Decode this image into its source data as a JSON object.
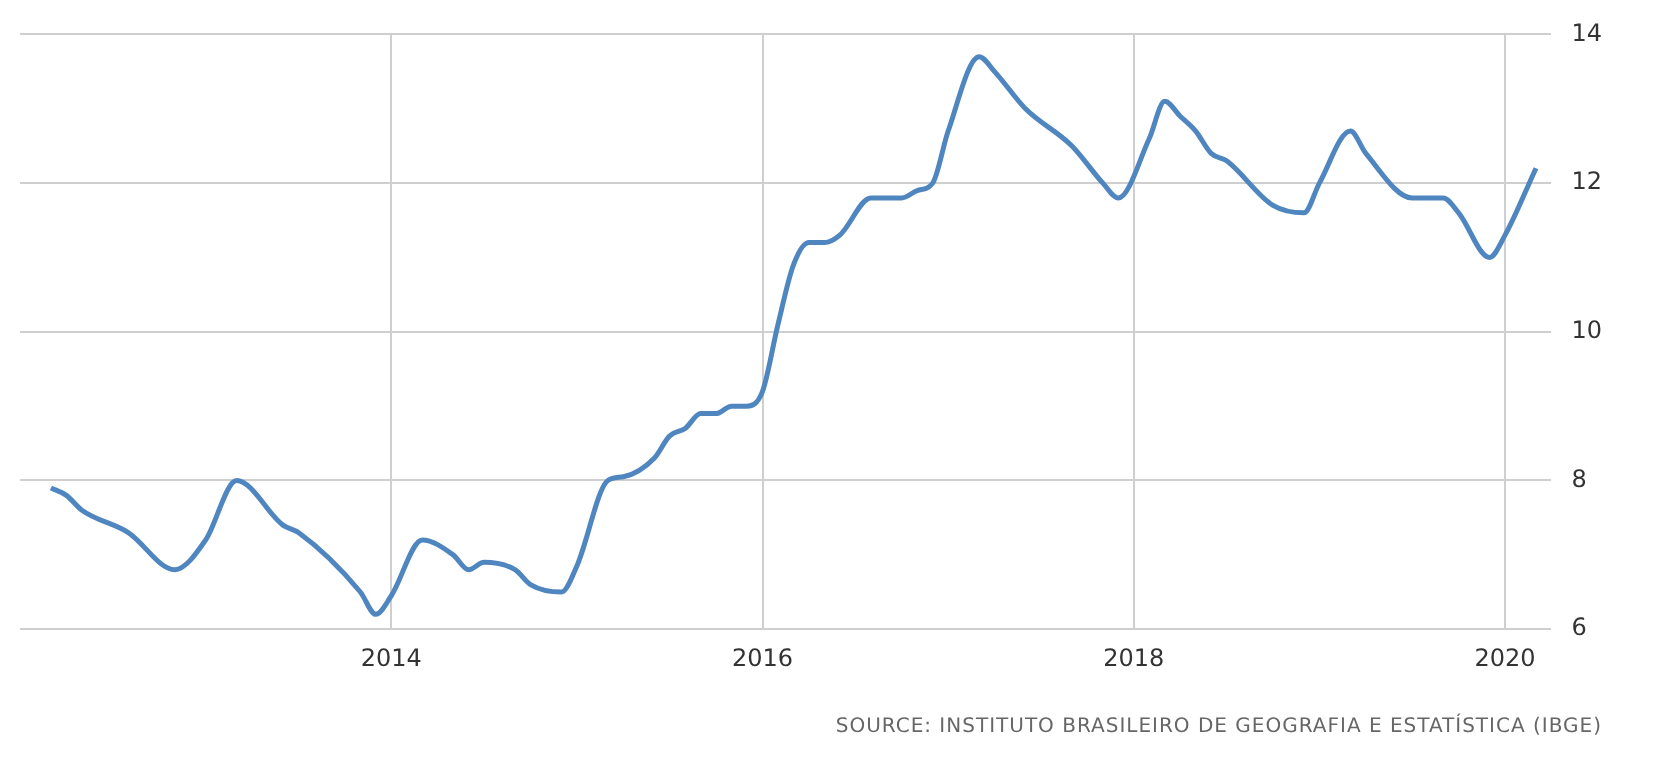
{
  "chart_data": {
    "type": "line",
    "annotations": [
      "SOURCE: INSTITUTO BRASILEIRO DE GEOGRAFIA E ESTATÍSTICA (IBGE)"
    ],
    "x": [
      "2012-03",
      "2012-04",
      "2012-05",
      "2012-08",
      "2012-11",
      "2013-01",
      "2013-03",
      "2013-06",
      "2013-07",
      "2013-11",
      "2013-12",
      "2014-01",
      "2014-03",
      "2014-05",
      "2014-06",
      "2014-07",
      "2014-09",
      "2014-10",
      "2014-12",
      "2015-01",
      "2015-03",
      "2015-04",
      "2015-06",
      "2015-07",
      "2015-08",
      "2015-09",
      "2015-10",
      "2015-11",
      "2015-12",
      "2016-01",
      "2016-02",
      "2016-03",
      "2016-04",
      "2016-05",
      "2016-06",
      "2016-08",
      "2016-10",
      "2016-11",
      "2016-12",
      "2017-01",
      "2017-03",
      "2017-04",
      "2017-06",
      "2017-09",
      "2017-11",
      "2017-12",
      "2018-02",
      "2018-03",
      "2018-04",
      "2018-05",
      "2018-06",
      "2018-07",
      "2018-10",
      "2018-12",
      "2019-01",
      "2019-03",
      "2019-04",
      "2019-07",
      "2019-09",
      "2019-10",
      "2019-12",
      "2020-01",
      "2020-03"
    ],
    "series": [
      {
        "color": "#4f86c0",
        "values": [
          7.9,
          7.8,
          7.6,
          7.3,
          6.8,
          7.2,
          8.0,
          7.4,
          7.3,
          6.5,
          6.2,
          6.45,
          7.2,
          7.0,
          6.8,
          6.9,
          6.8,
          6.6,
          6.5,
          6.85,
          8.0,
          8.05,
          8.3,
          8.6,
          8.7,
          8.9,
          8.9,
          9.0,
          9.0,
          9.2,
          10.1,
          10.9,
          11.2,
          11.2,
          11.3,
          11.8,
          11.8,
          11.9,
          12.0,
          12.7,
          13.7,
          13.5,
          13.0,
          12.5,
          12.0,
          11.8,
          12.6,
          13.1,
          12.9,
          12.7,
          12.4,
          12.3,
          11.7,
          11.6,
          12.0,
          12.7,
          12.4,
          11.8,
          11.8,
          11.6,
          11.0,
          11.3,
          12.2
        ]
      }
    ],
    "xlim": [
      "2012-01",
      "2020-04"
    ],
    "xticks": [
      "2014",
      "2016",
      "2018",
      "2020"
    ],
    "ylim": [
      6,
      14
    ],
    "yticks": [
      6,
      8,
      10,
      12,
      14
    ],
    "grid": true,
    "legend": false,
    "marker": "none",
    "line_style": "solid"
  }
}
